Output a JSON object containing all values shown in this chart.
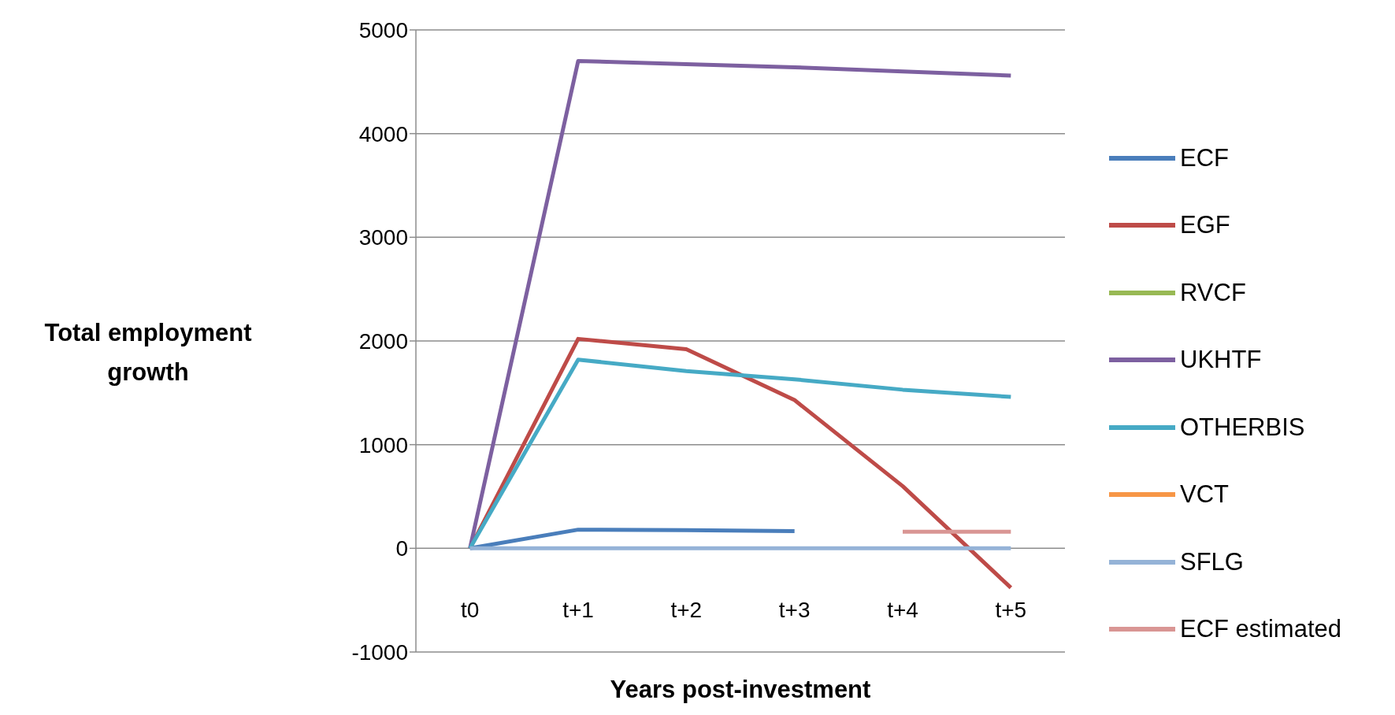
{
  "chart_data": {
    "type": "line",
    "xlabel": "Years post-investment",
    "ylabel": "Total employment growth",
    "categories": [
      "t0",
      "t+1",
      "t+2",
      "t+3",
      "t+4",
      "t+5"
    ],
    "series": [
      {
        "name": "ECF",
        "color": "#4a7ebb",
        "values": [
          0,
          180,
          175,
          165,
          null,
          null
        ]
      },
      {
        "name": "EGF",
        "color": "#be4b48",
        "values": [
          0,
          2020,
          1920,
          1430,
          600,
          -380
        ]
      },
      {
        "name": "RVCF",
        "color": "#98b954",
        "values": [
          null,
          null,
          null,
          null,
          null,
          null
        ]
      },
      {
        "name": "UKHTF",
        "color": "#7d60a0",
        "values": [
          0,
          4700,
          4670,
          4640,
          4600,
          4560
        ]
      },
      {
        "name": "OTHERBIS",
        "color": "#46aac5",
        "values": [
          0,
          1820,
          1710,
          1630,
          1530,
          1460
        ]
      },
      {
        "name": "VCT",
        "color": "#f79646",
        "values": [
          null,
          null,
          null,
          null,
          null,
          null
        ]
      },
      {
        "name": "SFLG",
        "color": "#95b3d7",
        "values": [
          0,
          0,
          0,
          0,
          0,
          0
        ]
      },
      {
        "name": "ECF estimated",
        "color": "#d99694",
        "values": [
          null,
          null,
          null,
          null,
          160,
          160
        ]
      }
    ],
    "ylim": [
      -1000,
      5000
    ],
    "yticks": [
      -1000,
      0,
      1000,
      2000,
      3000,
      4000,
      5000
    ],
    "grid": "y",
    "legend": "right"
  }
}
